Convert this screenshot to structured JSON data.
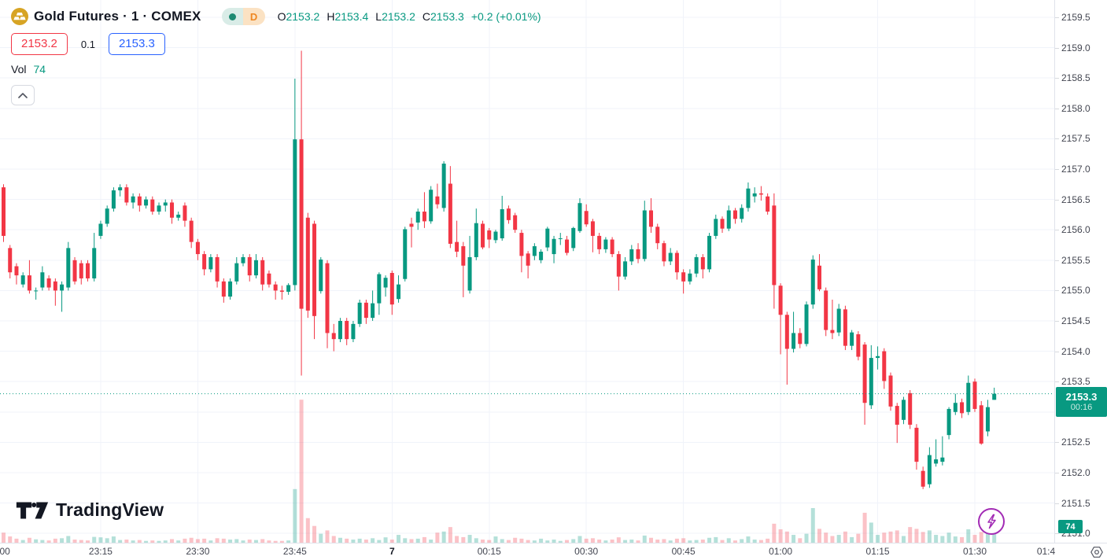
{
  "app": {
    "watermark_text": "TradingView"
  },
  "header": {
    "symbol_title": "Gold Futures · 1 · COMEX",
    "interval_badge": "D",
    "ohlc": {
      "open_label": "O",
      "open": "2153.2",
      "high_label": "H",
      "high": "2153.4",
      "low_label": "L",
      "low": "2153.2",
      "close_label": "C",
      "close": "2153.3",
      "change": "+0.2 (+0.01%)"
    },
    "sell_price": "2153.2",
    "spread": "0.1",
    "buy_price": "2153.3",
    "volume_label": "Vol",
    "volume_value": "74"
  },
  "price_axis": {
    "labels": [
      "2159.5",
      "2159.0",
      "2158.5",
      "2158.0",
      "2157.5",
      "2157.0",
      "2156.5",
      "2156.0",
      "2155.5",
      "2155.0",
      "2154.5",
      "2154.0",
      "2153.5",
      "2152.5",
      "2152.0",
      "2151.5",
      "2151.0"
    ],
    "current_price_badge": {
      "price": "2153.3",
      "countdown": "00:16"
    },
    "volume_badge": "74"
  },
  "time_axis": {
    "ticks": [
      {
        "label": ":00",
        "minute": 0
      },
      {
        "label": "23:15",
        "minute": 15
      },
      {
        "label": "23:30",
        "minute": 30
      },
      {
        "label": "23:45",
        "minute": 45
      },
      {
        "label": "7",
        "minute": 60,
        "bold": true
      },
      {
        "label": "00:15",
        "minute": 75
      },
      {
        "label": "00:30",
        "minute": 90
      },
      {
        "label": "00:45",
        "minute": 105
      },
      {
        "label": "01:00",
        "minute": 120
      },
      {
        "label": "01:15",
        "minute": 135
      },
      {
        "label": "01:30",
        "minute": 150
      },
      {
        "label": "01:4",
        "minute": 161
      }
    ]
  },
  "colors": {
    "up": "#089981",
    "down": "#f23645",
    "volume_up": "rgba(8,153,129,0.30)",
    "volume_down": "rgba(242,54,69,0.30)",
    "grid": "#f0f3fa",
    "axis_text": "#434651",
    "dark_text": "#131722",
    "badge_green": "#089981",
    "accent_blue": "#2962ff",
    "status_dot": "#1d8a72",
    "interval_orange": "#ee8722",
    "gold_icon": "#d7a424",
    "lightning_purple": "#a22bb5"
  },
  "chart_data": {
    "type": "candlestick",
    "symbol": "Gold Futures",
    "exchange": "COMEX",
    "interval": "1 minute",
    "start_time": "23:00",
    "last_bar_time": "01:33",
    "date_label_at_midnight": "7",
    "visible_price_range": [
      2150.9,
      2159.8
    ],
    "price_gridline_step": 0.5,
    "time_gridline_step_minutes": 15,
    "current_price": 2153.3,
    "current_bar_countdown": "00:16",
    "last_volume": 74,
    "candles": [
      [
        2156.7,
        2156.75,
        2155.8,
        2155.9
      ],
      [
        2155.7,
        2155.75,
        2155.2,
        2155.3
      ],
      [
        2155.4,
        2155.45,
        2155.1,
        2155.25
      ],
      [
        2155.1,
        2155.3,
        2155.05,
        2155.25
      ],
      [
        2155.25,
        2155.5,
        2154.95,
        2155.0
      ],
      [
        2155.0,
        2155.05,
        2154.85,
        2155.0
      ],
      [
        2155.05,
        2155.4,
        2155.0,
        2155.3
      ],
      [
        2155.2,
        2155.25,
        2155.0,
        2155.05
      ],
      [
        2155.15,
        2155.2,
        2154.75,
        2155.0
      ],
      [
        2155.0,
        2155.15,
        2154.65,
        2155.1
      ],
      [
        2155.05,
        2155.8,
        2155.0,
        2155.7
      ],
      [
        2155.5,
        2155.55,
        2155.1,
        2155.15
      ],
      [
        2155.45,
        2155.5,
        2155.1,
        2155.2
      ],
      [
        2155.45,
        2155.5,
        2155.15,
        2155.2
      ],
      [
        2155.2,
        2155.95,
        2155.15,
        2155.7
      ],
      [
        2155.9,
        2156.15,
        2155.85,
        2156.1
      ],
      [
        2156.1,
        2156.4,
        2156.05,
        2156.35
      ],
      [
        2156.35,
        2156.7,
        2156.3,
        2156.65
      ],
      [
        2156.65,
        2156.75,
        2156.55,
        2156.7
      ],
      [
        2156.7,
        2156.75,
        2156.4,
        2156.45
      ],
      [
        2156.45,
        2156.6,
        2156.35,
        2156.55
      ],
      [
        2156.55,
        2156.6,
        2156.3,
        2156.4
      ],
      [
        2156.4,
        2156.55,
        2156.35,
        2156.5
      ],
      [
        2156.5,
        2156.55,
        2156.25,
        2156.3
      ],
      [
        2156.3,
        2156.45,
        2156.25,
        2156.4
      ],
      [
        2156.4,
        2156.5,
        2156.3,
        2156.45
      ],
      [
        2156.45,
        2156.5,
        2156.1,
        2156.2
      ],
      [
        2156.2,
        2156.3,
        2156.15,
        2156.25
      ],
      [
        2156.4,
        2156.45,
        2156.05,
        2156.15
      ],
      [
        2156.15,
        2156.2,
        2155.7,
        2155.8
      ],
      [
        2155.8,
        2155.85,
        2155.5,
        2155.6
      ],
      [
        2155.6,
        2155.65,
        2155.25,
        2155.35
      ],
      [
        2155.35,
        2155.6,
        2155.3,
        2155.55
      ],
      [
        2155.55,
        2155.6,
        2155.05,
        2155.15
      ],
      [
        2155.15,
        2155.2,
        2154.8,
        2154.9
      ],
      [
        2154.9,
        2155.2,
        2154.85,
        2155.15
      ],
      [
        2155.15,
        2155.55,
        2155.1,
        2155.45
      ],
      [
        2155.45,
        2155.6,
        2155.4,
        2155.55
      ],
      [
        2155.55,
        2155.6,
        2155.15,
        2155.25
      ],
      [
        2155.25,
        2155.6,
        2155.2,
        2155.5
      ],
      [
        2155.5,
        2155.55,
        2155.0,
        2155.1
      ],
      [
        2155.28,
        2155.33,
        2155.05,
        2155.1
      ],
      [
        2155.1,
        2155.15,
        2154.85,
        2155.0
      ],
      [
        2155.0,
        2155.08,
        2154.85,
        2154.98
      ],
      [
        2154.98,
        2155.12,
        2154.93,
        2155.09
      ],
      [
        2155.09,
        2158.49,
        2155.0,
        2157.49
      ],
      [
        2157.49,
        2158.95,
        2153.6,
        2154.7
      ],
      [
        2156.2,
        2156.28,
        2154.55,
        2154.67
      ],
      [
        2156.1,
        2156.15,
        2154.2,
        2154.58
      ],
      [
        2154.99,
        2155.55,
        2154.95,
        2155.51
      ],
      [
        2155.45,
        2155.5,
        2154.05,
        2154.3
      ],
      [
        2154.3,
        2154.45,
        2154.0,
        2154.2
      ],
      [
        2154.2,
        2154.55,
        2154.15,
        2154.5
      ],
      [
        2154.5,
        2154.55,
        2154.1,
        2154.2
      ],
      [
        2154.2,
        2154.5,
        2154.15,
        2154.45
      ],
      [
        2154.45,
        2154.85,
        2154.4,
        2154.8
      ],
      [
        2154.8,
        2154.85,
        2154.45,
        2154.55
      ],
      [
        2154.55,
        2155.0,
        2154.5,
        2154.79
      ],
      [
        2154.79,
        2155.3,
        2154.6,
        2155.27
      ],
      [
        2155.05,
        2155.25,
        2154.9,
        2155.21
      ],
      [
        2155.29,
        2155.33,
        2154.6,
        2154.77
      ],
      [
        2154.86,
        2155.25,
        2154.8,
        2155.1
      ],
      [
        2155.19,
        2156.05,
        2155.15,
        2156.01
      ],
      [
        2156.1,
        2156.2,
        2155.71,
        2156.05
      ],
      [
        2156.12,
        2156.35,
        2156.0,
        2156.3
      ],
      [
        2156.3,
        2156.62,
        2156.03,
        2156.14
      ],
      [
        2156.14,
        2156.72,
        2156.1,
        2156.66
      ],
      [
        2156.55,
        2156.76,
        2156.35,
        2156.42
      ],
      [
        2156.36,
        2157.13,
        2156.3,
        2157.09
      ],
      [
        2156.76,
        2157.05,
        2155.7,
        2155.77
      ],
      [
        2155.8,
        2156.15,
        2155.55,
        2155.64
      ],
      [
        2155.73,
        2155.8,
        2154.89,
        2155.41
      ],
      [
        2155.0,
        2155.9,
        2154.95,
        2155.55
      ],
      [
        2155.55,
        2156.35,
        2155.5,
        2156.11
      ],
      [
        2156.1,
        2156.15,
        2155.68,
        2155.71
      ],
      [
        2155.99,
        2156.03,
        2155.7,
        2155.84
      ],
      [
        2155.83,
        2156.0,
        2155.78,
        2155.97
      ],
      [
        2155.86,
        2156.56,
        2155.82,
        2156.34
      ],
      [
        2156.35,
        2156.4,
        2156.1,
        2156.16
      ],
      [
        2156.24,
        2156.28,
        2155.95,
        2156.0
      ],
      [
        2155.95,
        2156.0,
        2155.3,
        2155.57
      ],
      [
        2155.61,
        2155.65,
        2155.2,
        2155.41
      ],
      [
        2155.57,
        2155.78,
        2155.5,
        2155.73
      ],
      [
        2155.5,
        2155.68,
        2155.45,
        2155.64
      ],
      [
        2155.71,
        2156.05,
        2155.65,
        2156.02
      ],
      [
        2155.6,
        2155.9,
        2155.45,
        2155.85
      ],
      [
        2155.85,
        2155.95,
        2155.75,
        2155.86
      ],
      [
        2155.84,
        2155.9,
        2155.58,
        2155.62
      ],
      [
        2155.7,
        2156.05,
        2155.65,
        2156.03
      ],
      [
        2155.98,
        2156.52,
        2155.95,
        2156.44
      ],
      [
        2156.31,
        2156.42,
        2156.05,
        2156.09
      ],
      [
        2156.14,
        2156.18,
        2155.63,
        2155.9
      ],
      [
        2155.9,
        2155.95,
        2155.6,
        2155.68
      ],
      [
        2155.68,
        2155.88,
        2155.62,
        2155.84
      ],
      [
        2155.84,
        2155.88,
        2155.55,
        2155.6
      ],
      [
        2155.6,
        2155.65,
        2155.0,
        2155.23
      ],
      [
        2155.23,
        2155.55,
        2155.18,
        2155.48
      ],
      [
        2155.48,
        2155.75,
        2155.42,
        2155.68
      ],
      [
        2155.68,
        2155.78,
        2155.45,
        2155.52
      ],
      [
        2155.52,
        2156.48,
        2155.48,
        2156.32
      ],
      [
        2156.32,
        2156.52,
        2155.95,
        2156.05
      ],
      [
        2156.05,
        2156.1,
        2155.68,
        2155.78
      ],
      [
        2155.78,
        2155.82,
        2155.4,
        2155.48
      ],
      [
        2155.48,
        2155.7,
        2155.42,
        2155.62
      ],
      [
        2155.62,
        2155.66,
        2155.18,
        2155.3
      ],
      [
        2155.3,
        2155.35,
        2154.95,
        2155.15
      ],
      [
        2155.15,
        2155.35,
        2155.1,
        2155.28
      ],
      [
        2155.28,
        2155.6,
        2155.22,
        2155.55
      ],
      [
        2155.55,
        2155.6,
        2155.2,
        2155.35
      ],
      [
        2155.35,
        2155.95,
        2155.3,
        2155.9
      ],
      [
        2155.9,
        2156.25,
        2155.85,
        2156.18
      ],
      [
        2156.18,
        2156.22,
        2155.95,
        2156.02
      ],
      [
        2156.02,
        2156.4,
        2155.98,
        2156.32
      ],
      [
        2156.32,
        2156.36,
        2156.1,
        2156.18
      ],
      [
        2156.18,
        2156.42,
        2156.12,
        2156.36
      ],
      [
        2156.36,
        2156.78,
        2156.3,
        2156.68
      ],
      [
        2156.55,
        2156.7,
        2156.45,
        2156.6
      ],
      [
        2156.6,
        2156.72,
        2156.48,
        2156.58
      ],
      [
        2156.55,
        2156.6,
        2156.25,
        2156.3
      ],
      [
        2156.4,
        2156.6,
        2154.7,
        2155.09
      ],
      [
        2155.08,
        2155.12,
        2153.95,
        2154.6
      ],
      [
        2154.6,
        2154.65,
        2153.45,
        2154.04
      ],
      [
        2154.04,
        2154.65,
        2153.98,
        2154.3
      ],
      [
        2154.3,
        2154.38,
        2154.05,
        2154.12
      ],
      [
        2154.12,
        2154.82,
        2154.08,
        2154.77
      ],
      [
        2154.77,
        2155.58,
        2154.7,
        2155.51
      ],
      [
        2155.41,
        2155.6,
        2154.99,
        2155.02
      ],
      [
        2155.0,
        2155.05,
        2154.25,
        2154.35
      ],
      [
        2154.35,
        2154.85,
        2154.2,
        2154.3
      ],
      [
        2154.31,
        2154.78,
        2154.25,
        2154.7
      ],
      [
        2154.69,
        2154.75,
        2154.02,
        2154.09
      ],
      [
        2154.09,
        2154.35,
        2154.02,
        2154.31
      ],
      [
        2154.28,
        2154.33,
        2153.85,
        2153.91
      ],
      [
        2154.11,
        2154.15,
        2152.79,
        2153.15
      ],
      [
        2153.11,
        2154.1,
        2153.05,
        2153.89
      ],
      [
        2153.89,
        2154.08,
        2153.7,
        2153.92
      ],
      [
        2154.0,
        2154.05,
        2153.38,
        2153.51
      ],
      [
        2153.6,
        2153.65,
        2153.02,
        2153.09
      ],
      [
        2153.1,
        2153.15,
        2152.49,
        2152.79
      ],
      [
        2152.87,
        2153.25,
        2152.8,
        2153.2
      ],
      [
        2153.31,
        2153.36,
        2152.72,
        2152.79
      ],
      [
        2152.74,
        2152.8,
        2152.05,
        2152.18
      ],
      [
        2152.03,
        2152.1,
        2151.73,
        2151.77
      ],
      [
        2151.81,
        2152.42,
        2151.75,
        2152.29
      ],
      [
        2152.15,
        2152.55,
        2152.1,
        2152.22
      ],
      [
        2152.18,
        2152.6,
        2152.12,
        2152.25
      ],
      [
        2152.62,
        2153.08,
        2152.55,
        2153.05
      ],
      [
        2153.0,
        2153.3,
        2152.95,
        2153.15
      ],
      [
        2153.16,
        2153.22,
        2152.9,
        2152.98
      ],
      [
        2153.0,
        2153.6,
        2152.95,
        2153.48
      ],
      [
        2153.5,
        2153.55,
        2153.0,
        2153.05
      ],
      [
        2153.11,
        2153.18,
        2152.46,
        2152.48
      ],
      [
        2152.68,
        2153.2,
        2152.6,
        2153.08
      ],
      [
        2153.2,
        2153.4,
        2153.2,
        2153.3
      ]
    ],
    "volumes": [
      45,
      28,
      18,
      12,
      22,
      15,
      12,
      10,
      18,
      20,
      30,
      14,
      12,
      10,
      26,
      24,
      20,
      28,
      12,
      14,
      10,
      12,
      8,
      10,
      8,
      10,
      16,
      10,
      18,
      22,
      16,
      18,
      10,
      20,
      18,
      14,
      16,
      10,
      14,
      12,
      16,
      10,
      8,
      8,
      10,
      240,
      640,
      110,
      75,
      40,
      55,
      30,
      22,
      18,
      14,
      18,
      14,
      20,
      12,
      24,
      14,
      35,
      20,
      16,
      18,
      25,
      14,
      45,
      50,
      70,
      30,
      25,
      35,
      20,
      14,
      12,
      28,
      16,
      12,
      22,
      18,
      12,
      10,
      18,
      10,
      14,
      8,
      12,
      16,
      30,
      18,
      20,
      14,
      10,
      14,
      24,
      12,
      14,
      10,
      32,
      22,
      14,
      16,
      10,
      18,
      20,
      10,
      12,
      14,
      22,
      25,
      12,
      20,
      10,
      16,
      28,
      14,
      12,
      18,
      85,
      60,
      50,
      35,
      20,
      40,
      155,
      62,
      45,
      30,
      35,
      50,
      25,
      40,
      134,
      90,
      35,
      45,
      50,
      55,
      30,
      70,
      62,
      48,
      55,
      35,
      30,
      45,
      28,
      25,
      60,
      35,
      48,
      55,
      74
    ]
  }
}
